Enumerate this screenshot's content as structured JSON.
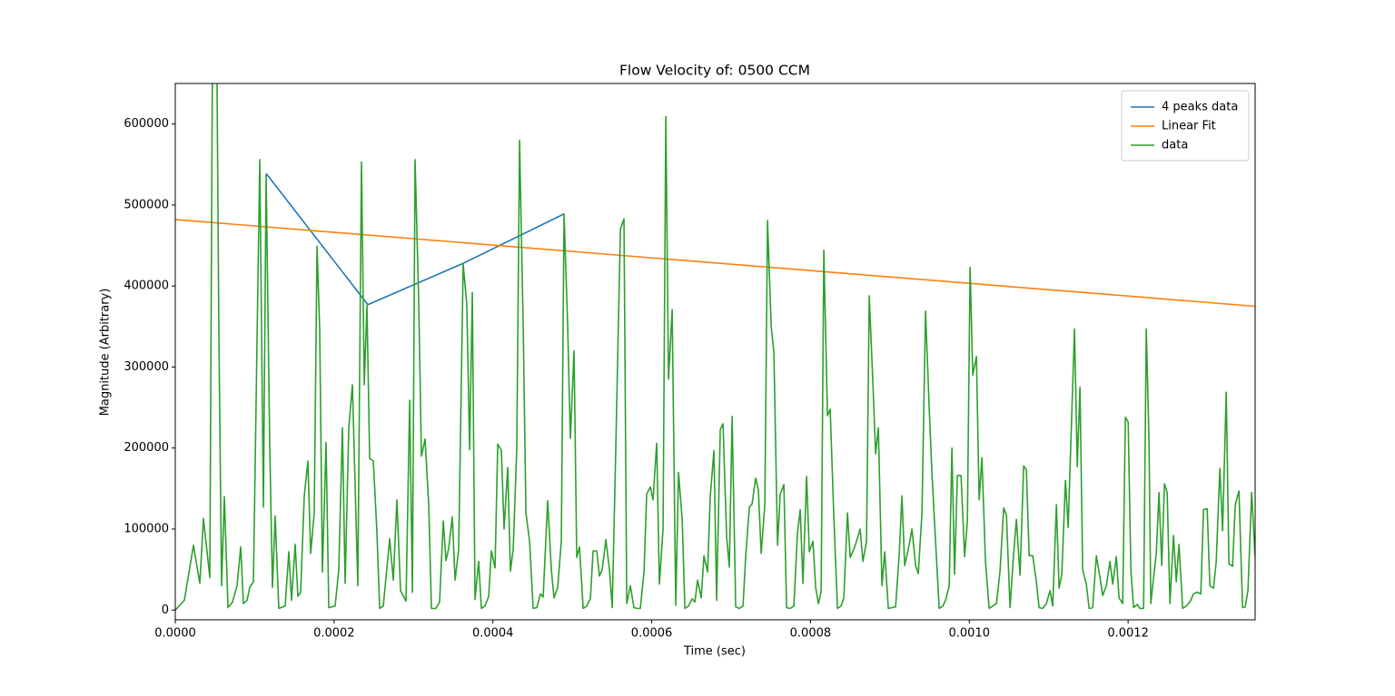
{
  "chart_data": {
    "type": "line",
    "title": "Flow Velocity of: 0500 CCM",
    "xlabel": "Time (sec)",
    "ylabel": "Magnitude (Arbitrary)",
    "xlim": [
      0,
      0.00136
    ],
    "ylim": [
      -12000,
      650000
    ],
    "xticks": [
      {
        "value": 0,
        "label": "0.0000"
      },
      {
        "value": 0.0002,
        "label": "0.0002"
      },
      {
        "value": 0.0004,
        "label": "0.0004"
      },
      {
        "value": 0.0006,
        "label": "0.0006"
      },
      {
        "value": 0.0008,
        "label": "0.0008"
      },
      {
        "value": 0.001,
        "label": "0.0010"
      },
      {
        "value": 0.0012,
        "label": "0.0012"
      }
    ],
    "yticks": [
      0,
      100000,
      200000,
      300000,
      400000,
      500000,
      600000
    ],
    "grid": false,
    "legend": "upper right",
    "series": [
      {
        "name": "4 peaks data",
        "color": "#1f77b4",
        "x": [
          0.0001144,
          0.0002425,
          0.0003626,
          0.0004896
        ],
        "values": [
          539000,
          377000,
          428000,
          489000
        ]
      },
      {
        "name": "Linear Fit",
        "color": "#ff7f0e",
        "x": [
          0,
          0.00136
        ],
        "values": [
          482000,
          375000
        ]
      },
      {
        "name": "data",
        "color": "#2ca02c",
        "x": [
          0,
          1.14e-05,
          2.29e-05,
          3.09e-05,
          3.55e-05,
          4.35e-05,
          4.69e-05,
          5.26e-05,
          5.49e-05,
          5.83e-05,
          6.18e-05,
          6.64e-05,
          7.21e-05,
          7.78e-05,
          8.24e-05,
          8.58e-05,
          9.04e-05,
          9.38e-05,
          9.84e-05,
          0.0001064,
          0.000111,
          0.0001144,
          0.000119,
          0.0001224,
          0.0001258,
          0.0001304,
          0.0001384,
          0.000143,
          0.0001464,
          0.000151,
          0.0001544,
          0.0001579,
          0.0001624,
          0.000167,
          0.0001705,
          0.000175,
          0.0001785,
          0.0001819,
          0.0001853,
          0.0001899,
          0.0001933,
          0.0002013,
          0.0002059,
          0.0002105,
          0.0002139,
          0.0002185,
          0.0002231,
          0.0002299,
          0.0002345,
          0.000238,
          0.0002414,
          0.0002448,
          0.0002494,
          0.000254,
          0.0002574,
          0.000262,
          0.00027,
          0.0002746,
          0.0002791,
          0.0002837,
          0.0002906,
          0.0002952,
          0.0002986,
          0.000302,
          0.0003066,
          0.00031,
          0.0003146,
          0.0003192,
          0.0003226,
          0.0003283,
          0.0003329,
          0.0003375,
          0.0003409,
          0.0003443,
          0.0003489,
          0.0003524,
          0.0003569,
          0.0003626,
          0.0003672,
          0.0003707,
          0.0003741,
          0.0003775,
          0.0003821,
          0.0003855,
          0.0003901,
          0.0003947,
          0.0003981,
          0.0004027,
          0.0004061,
          0.0004107,
          0.0004141,
          0.0004187,
          0.0004221,
          0.0004256,
          0.0004301,
          0.0004336,
          0.0004382,
          0.0004416,
          0.0004462,
          0.0004507,
          0.0004553,
          0.0004599,
          0.0004633,
          0.000469,
          0.0004736,
          0.000477,
          0.0004816,
          0.0004862,
          0.0004896,
          0.0004942,
          0.0004976,
          0.0005022,
          0.0005056,
          0.0005091,
          0.0005137,
          0.0005182,
          0.0005228,
          0.0005262,
          0.0005308,
          0.0005342,
          0.0005377,
          0.0005423,
          0.0005468,
          0.0005503,
          0.0005548,
          0.0005606,
          0.0005651,
          0.0005686,
          0.0005731,
          0.0005777,
          0.0005823,
          0.0005857,
          0.0005903,
          0.0005937,
          0.0005983,
          0.0006017,
          0.0006063,
          0.0006097,
          0.0006143,
          0.0006178,
          0.0006212,
          0.0006258,
          0.0006303,
          0.0006338,
          0.0006384,
          0.0006418,
          0.0006464,
          0.0006509,
          0.0006544,
          0.0006578,
          0.0006624,
          0.0006658,
          0.0006704,
          0.0006738,
          0.0006784,
          0.0006818,
          0.0006864,
          0.0006898,
          0.0006944,
          0.0006978,
          0.0007013,
          0.0007058,
          0.0007104,
          0.000715,
          0.0007184,
          0.000723,
          0.0007264,
          0.000731,
          0.0007344,
          0.0007379,
          0.0007425,
          0.0007459,
          0.0007505,
          0.0007539,
          0.0007585,
          0.0007619,
          0.0007665,
          0.0007699,
          0.0007745,
          0.0007791,
          0.0007836,
          0.0007871,
          0.0007905,
          0.0007951,
          0.0007985,
          0.0008031,
          0.0008065,
          0.00081,
          0.0008134,
          0.0008168,
          0.0008214,
          0.0008248,
          0.0008294,
          0.000834,
          0.0008385,
          0.000842,
          0.0008466,
          0.00085,
          0.0008546,
          0.000858,
          0.0008626,
          0.000866,
          0.0008706,
          0.000874,
          0.0008786,
          0.000882,
          0.0008855,
          0.00089,
          0.0008935,
          0.000898,
          0.0009026,
          0.0009072,
          0.0009118,
          0.0009152,
          0.0009186,
          0.0009232,
          0.0009278,
          0.0009324,
          0.0009358,
          0.0009404,
          0.0009449,
          0.0009495,
          0.0009529,
          0.0009575,
          0.0009621,
          0.0009667,
          0.0009701,
          0.0009747,
          0.0009781,
          0.0009815,
          0.000985,
          0.0009896,
          0.0009941,
          0.0009976,
          0.001001,
          0.0010044,
          0.001009,
          0.0010124,
          0.0010159,
          0.0010204,
          0.001025,
          0.0010296,
          0.0010342,
          0.0010387,
          0.0010433,
          0.0010468,
          0.0010513,
          0.0010559,
          0.0010593,
          0.0010639,
          0.0010685,
          0.0010719,
          0.0010754,
          0.0010799,
          0.0010845,
          0.0010879,
          0.0010925,
          0.0010971,
          0.0011017,
          0.0011051,
          0.0011097,
          0.0011131,
          0.0011165,
          0.0011211,
          0.0011245,
          0.0011325,
          0.001136,
          0.0011394,
          0.0011428,
          0.0011474,
          0.0011509,
          0.0011554,
          0.00116,
          0.0011646,
          0.001168,
          0.0011726,
          0.0011772,
          0.0011806,
          0.0011852,
          0.0011886,
          0.0011932,
          0.0011966,
          0.0012001,
          0.0012035,
          0.0012069,
          0.0012115,
          0.0012149,
          0.0012195,
          0.0012229,
          0.0012263,
          0.0012286,
          0.0012321,
          0.0012355,
          0.0012389,
          0.0012424,
          0.0012458,
          0.0012492,
          0.0012527,
          0.0012572,
          0.0012607,
          0.0012641,
          0.0012687,
          0.0012732,
          0.0012778,
          0.0012824,
          0.001287,
          0.0012916,
          0.001295,
          0.0012996,
          0.001303,
          0.0013076,
          0.001311,
          0.0013156,
          0.001319,
          0.0013236,
          0.001327,
          0.0013316,
          0.001335,
          0.0013396,
          0.0013442,
          0.0013476,
          0.001351,
          0.0013556,
          0.00136
        ],
        "values": [
          0,
          12000,
          80000,
          33000,
          113000,
          40000,
          700000,
          650000,
          340000,
          30000,
          140000,
          3000,
          10000,
          30000,
          78000,
          8000,
          12000,
          28000,
          35000,
          556000,
          127000,
          537000,
          200000,
          28000,
          116000,
          2000,
          5000,
          72000,
          12000,
          81000,
          17000,
          22000,
          140000,
          184000,
          70000,
          120000,
          449000,
          345000,
          47000,
          207000,
          3000,
          5000,
          50000,
          225000,
          33000,
          225000,
          278000,
          30000,
          553000,
          278000,
          376000,
          187000,
          184000,
          95000,
          2000,
          5000,
          88000,
          37000,
          136000,
          24000,
          11000,
          259000,
          22000,
          556000,
          380000,
          190000,
          211000,
          130000,
          2000,
          2000,
          10000,
          110000,
          61000,
          76000,
          115000,
          37000,
          75000,
          427000,
          376000,
          198000,
          392000,
          13000,
          60000,
          2000,
          5000,
          17000,
          73000,
          52000,
          205000,
          197000,
          100000,
          176000,
          48000,
          75000,
          200000,
          580000,
          350000,
          120000,
          85000,
          2000,
          3000,
          20000,
          16000,
          135000,
          50000,
          15000,
          28000,
          85000,
          489000,
          350000,
          212000,
          320000,
          65000,
          78000,
          2000,
          5000,
          14000,
          73000,
          73000,
          42000,
          50000,
          87000,
          50000,
          3000,
          200000,
          470000,
          483000,
          8000,
          30000,
          3000,
          2000,
          2000,
          47000,
          143000,
          152000,
          136000,
          206000,
          32000,
          100000,
          609000,
          285000,
          371000,
          6000,
          170000,
          112000,
          2000,
          5000,
          14000,
          10000,
          37000,
          15000,
          67000,
          47000,
          141000,
          197000,
          12000,
          223000,
          230000,
          90000,
          53000,
          239000,
          4000,
          2000,
          5000,
          66000,
          127000,
          131000,
          163000,
          148000,
          70000,
          130000,
          481000,
          350000,
          318000,
          80000,
          143000,
          155000,
          3000,
          2000,
          5000,
          95000,
          124000,
          33000,
          165000,
          72000,
          85000,
          28000,
          8000,
          23000,
          444000,
          240000,
          248000,
          115000,
          2000,
          5000,
          15000,
          120000,
          65000,
          75000,
          85000,
          100000,
          60000,
          85000,
          388000,
          280000,
          193000,
          225000,
          30000,
          72000,
          2000,
          3000,
          4000,
          70000,
          141000,
          55000,
          75000,
          100000,
          55000,
          45000,
          120000,
          369000,
          250000,
          170000,
          85000,
          2000,
          5000,
          12000,
          30000,
          200000,
          44000,
          166000,
          166000,
          66000,
          110000,
          423000,
          290000,
          313000,
          136000,
          188000,
          60000,
          2000,
          5000,
          8000,
          48000,
          126000,
          117000,
          3000,
          70000,
          112000,
          43000,
          178000,
          173000,
          67000,
          67000,
          35000,
          3000,
          2000,
          8000,
          24000,
          5000,
          130000,
          27000,
          44000,
          160000,
          102000,
          347000,
          177000,
          275000,
          50000,
          32000,
          2000,
          3000,
          67000,
          40000,
          18000,
          30000,
          60000,
          32000,
          66000,
          15000,
          8000,
          238000,
          232000,
          50000,
          3000,
          7000,
          2000,
          2000,
          347000,
          210000,
          8000,
          40000,
          70000,
          145000,
          55000,
          156000,
          145000,
          8000,
          92000,
          35000,
          81000,
          2000,
          5000,
          10000,
          20000,
          22000,
          20000,
          124000,
          125000,
          30000,
          27000,
          60000,
          175000,
          98000,
          269000,
          57000,
          54000,
          130000,
          147000,
          3000,
          4000,
          25000,
          145000,
          65000
        ]
      }
    ]
  }
}
